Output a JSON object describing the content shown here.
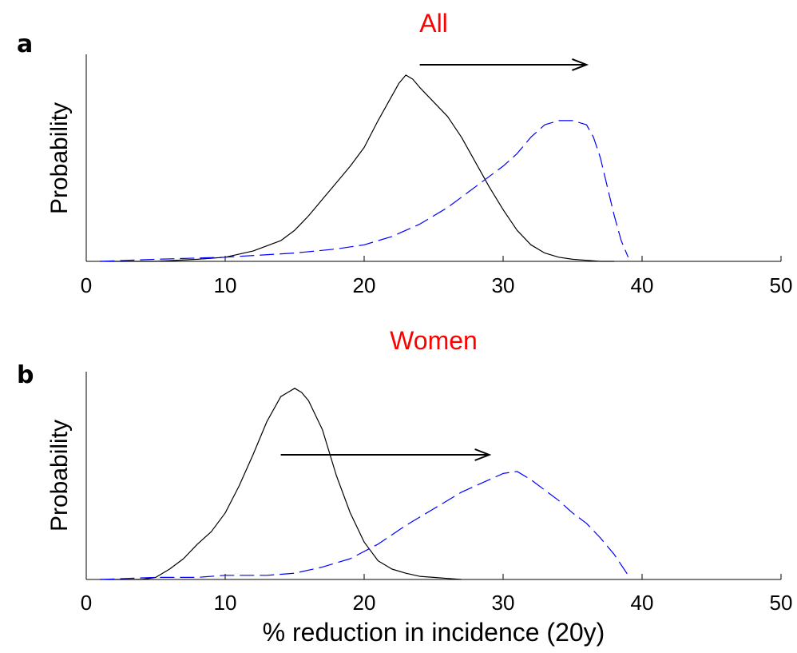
{
  "figure": {
    "xlabel": "% reduction in incidence (20y)"
  },
  "chart_data": [
    {
      "type": "line",
      "panel_label": "a",
      "title": "All",
      "title_color": "#ff0000",
      "xlabel": "",
      "ylabel": "Probability",
      "xlim": [
        0,
        50
      ],
      "ylim": [
        0,
        1
      ],
      "x_ticks": [
        0,
        10,
        20,
        30,
        40,
        50
      ],
      "x_tick_labels": [
        "0",
        "10",
        "20",
        "30",
        "40",
        "50"
      ],
      "y_ticks_shown": false,
      "grid": false,
      "series": [
        {
          "color": "#000000",
          "dash": "solid",
          "x": [
            1,
            5,
            8,
            10,
            12,
            14,
            15,
            16,
            17,
            18,
            19,
            20,
            21,
            22,
            22.5,
            23,
            23.5,
            24,
            25,
            26,
            27,
            28,
            29,
            30,
            31,
            32,
            33,
            34,
            35,
            36,
            37,
            38
          ],
          "y": [
            0,
            0,
            0.01,
            0.02,
            0.05,
            0.1,
            0.15,
            0.22,
            0.3,
            0.38,
            0.46,
            0.55,
            0.68,
            0.8,
            0.86,
            0.9,
            0.88,
            0.84,
            0.77,
            0.7,
            0.6,
            0.48,
            0.36,
            0.25,
            0.15,
            0.08,
            0.04,
            0.02,
            0.01,
            0.005,
            0,
            0
          ]
        },
        {
          "color": "#0000ff",
          "dash": "dashed",
          "x": [
            1,
            5,
            10,
            15,
            18,
            20,
            22,
            24,
            26,
            28,
            30,
            31,
            32,
            33,
            34,
            35,
            36,
            36.5,
            37,
            37.5,
            38,
            38.5,
            39
          ],
          "y": [
            0,
            0.01,
            0.02,
            0.04,
            0.06,
            0.08,
            0.12,
            0.18,
            0.26,
            0.36,
            0.46,
            0.52,
            0.6,
            0.66,
            0.68,
            0.68,
            0.66,
            0.6,
            0.5,
            0.36,
            0.22,
            0.1,
            0.02
          ]
        }
      ],
      "arrow": {
        "x_from": 24,
        "x_to": 36,
        "y": 0.95
      }
    },
    {
      "type": "line",
      "panel_label": "b",
      "title": "Women",
      "title_color": "#ff0000",
      "xlabel": "% reduction in incidence (20y)",
      "ylabel": "Probability",
      "xlim": [
        0,
        50
      ],
      "ylim": [
        0,
        1
      ],
      "x_ticks": [
        0,
        10,
        20,
        30,
        40,
        50
      ],
      "x_tick_labels": [
        "0",
        "10",
        "20",
        "30",
        "40",
        "50"
      ],
      "y_ticks_shown": false,
      "grid": false,
      "series": [
        {
          "color": "#000000",
          "dash": "solid",
          "x": [
            1,
            4,
            5,
            6,
            7,
            8,
            9,
            10,
            11,
            12,
            13,
            14,
            14.5,
            15,
            15.5,
            16,
            17,
            18,
            19,
            20,
            21,
            22,
            23,
            24,
            25,
            26,
            27
          ],
          "y": [
            0,
            0,
            0.01,
            0.05,
            0.1,
            0.17,
            0.23,
            0.32,
            0.45,
            0.6,
            0.76,
            0.88,
            0.9,
            0.92,
            0.9,
            0.86,
            0.72,
            0.5,
            0.32,
            0.18,
            0.09,
            0.05,
            0.03,
            0.015,
            0.01,
            0.005,
            0
          ]
        },
        {
          "color": "#0000ff",
          "dash": "dashed",
          "x": [
            1,
            5,
            8,
            10,
            13,
            15,
            17,
            19,
            21,
            23,
            25,
            27,
            29,
            30,
            31,
            32,
            33,
            34,
            35,
            36,
            37,
            38,
            39
          ],
          "y": [
            0,
            0.01,
            0.01,
            0.02,
            0.02,
            0.03,
            0.06,
            0.1,
            0.17,
            0.26,
            0.34,
            0.42,
            0.48,
            0.51,
            0.52,
            0.48,
            0.43,
            0.38,
            0.32,
            0.27,
            0.2,
            0.12,
            0.02
          ]
        }
      ],
      "arrow": {
        "x_from": 14,
        "x_to": 29,
        "y": 0.6
      }
    }
  ]
}
